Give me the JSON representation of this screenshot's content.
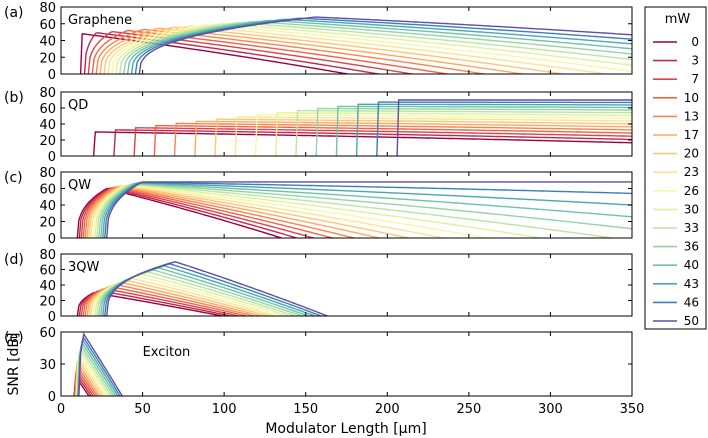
{
  "chart_data": {
    "type": "line",
    "xlabel": "Modulator Length [μm]",
    "ylabel": "SNR [dB]",
    "xlim": [
      0,
      350
    ],
    "xticks": [
      0,
      50,
      100,
      150,
      200,
      250,
      300,
      350
    ],
    "legend": {
      "title": "mW",
      "placement": "right",
      "entries": [
        "0",
        "3",
        "7",
        "10",
        "13",
        "17",
        "20",
        "23",
        "26",
        "30",
        "33",
        "36",
        "40",
        "43",
        "46",
        "50"
      ],
      "colors": [
        "#9e0142",
        "#c0294a",
        "#d9444d",
        "#ee6445",
        "#f6844f",
        "#fcaa5f",
        "#fdc675",
        "#fee390",
        "#f4f9a7",
        "#dff299",
        "#bbe4a0",
        "#94d4a4",
        "#6cc3a5",
        "#4da5b1",
        "#3a7fb8",
        "#5e4fa2"
      ]
    },
    "panels": [
      {
        "label": "(a)",
        "title": "Graphene",
        "ylim": [
          0,
          80
        ],
        "yticks": [
          0,
          20,
          40,
          60,
          80
        ],
        "onset": [
          12,
          48
        ],
        "peak_at": [
          12,
          156
        ],
        "peak_db": [
          48,
          68
        ],
        "slope": [
          0.25,
          0.09
        ]
      },
      {
        "label": "(b)",
        "title": "QD",
        "ylim": [
          0,
          80
        ],
        "yticks": [
          0,
          20,
          40,
          60,
          80
        ],
        "onset": [
          20,
          206
        ],
        "peak_at": [
          20,
          206
        ],
        "peak_db": [
          30,
          70
        ],
        "slope": [
          0.03,
          0.0
        ]
      },
      {
        "label": "(c)",
        "title": "QW",
        "ylim": [
          0,
          80
        ],
        "yticks": [
          0,
          20,
          40,
          60,
          80
        ],
        "onset": [
          10,
          28
        ],
        "peak_at": [
          28,
          50
        ],
        "peak_db": [
          60,
          68
        ],
        "slope": [
          0.5,
          0.0
        ]
      },
      {
        "label": "(d)",
        "title": "3QW",
        "ylim": [
          0,
          80
        ],
        "yticks": [
          0,
          20,
          40,
          60,
          80
        ],
        "onset": [
          10,
          28
        ],
        "peak_at": [
          20,
          70
        ],
        "peak_db": [
          30,
          70
        ],
        "slope": [
          0.35,
          0.68
        ]
      },
      {
        "label": "(e)",
        "title": "Exciton",
        "ylim": [
          0,
          60
        ],
        "yticks": [
          0,
          30,
          60
        ],
        "onset": [
          8,
          11
        ],
        "peak_at": [
          8,
          14
        ],
        "peak_db": [
          18,
          58
        ],
        "slope": [
          2.2,
          2.4
        ]
      }
    ]
  }
}
